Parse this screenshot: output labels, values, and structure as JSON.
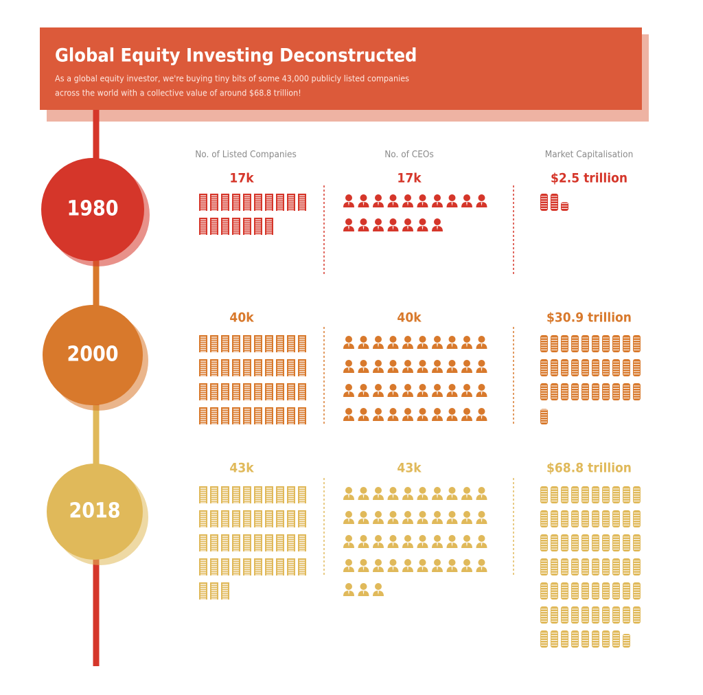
{
  "header": {
    "title": "Global Equity Investing Deconstructed",
    "subtitle_lines": [
      "As a global equity investor, we're buying tiny bits of some 43,000 publicly listed companies",
      "across the world with a collective value of around $68.8 trillion!"
    ]
  },
  "columns": [
    "No. of Listed Companies",
    "No. of CEOs",
    "Market Capitalisation"
  ],
  "rows": [
    {
      "year": "1980",
      "color": "#d5362a",
      "cells": [
        {
          "value": 17,
          "label": "17k"
        },
        {
          "value": 17,
          "label": "17k"
        },
        {
          "value": 2.5,
          "label": "$2.5 trillion"
        }
      ]
    },
    {
      "year": "2000",
      "color": "#d8792c",
      "cells": [
        {
          "value": 40,
          "label": "40k"
        },
        {
          "value": 40,
          "label": "40k"
        },
        {
          "value": 30.9,
          "label": "$30.9 trillion"
        }
      ]
    },
    {
      "year": "2018",
      "color": "#e0b95a",
      "cells": [
        {
          "value": 43,
          "label": "43k"
        },
        {
          "value": 43,
          "label": "43k"
        },
        {
          "value": 68.8,
          "label": "$68.8 trillion"
        }
      ]
    }
  ]
}
